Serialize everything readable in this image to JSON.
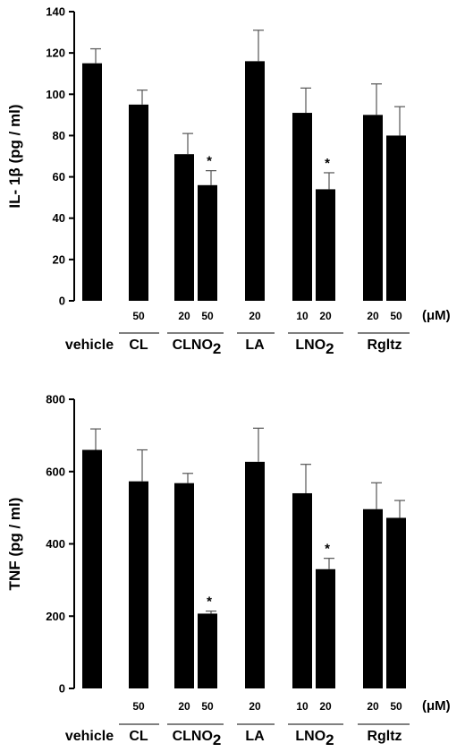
{
  "chart_data": [
    {
      "type": "bar",
      "ylabel": "IL- 1β (pg / ml)",
      "ylim": [
        0,
        140
      ],
      "yticks": [
        0,
        20,
        40,
        60,
        80,
        100,
        120,
        140
      ],
      "unit_label": "(μM)",
      "groups": [
        {
          "label": "vehicle",
          "sub": ""
        },
        {
          "label": "CL",
          "sub": ""
        },
        {
          "label": "CLNO",
          "sub": "2"
        },
        {
          "label": "LA",
          "sub": ""
        },
        {
          "label": "LNO",
          "sub": "2"
        },
        {
          "label": "Rgltz",
          "sub": ""
        }
      ],
      "bars": [
        {
          "group": 0,
          "conc": "",
          "value": 115,
          "error": 7,
          "star": ""
        },
        {
          "group": 1,
          "conc": "50",
          "value": 95,
          "error": 7,
          "star": ""
        },
        {
          "group": 2,
          "conc": "20",
          "value": 71,
          "error": 10,
          "star": ""
        },
        {
          "group": 2,
          "conc": "50",
          "value": 56,
          "error": 7,
          "star": "*"
        },
        {
          "group": 3,
          "conc": "20",
          "value": 116,
          "error": 15,
          "star": ""
        },
        {
          "group": 4,
          "conc": "10",
          "value": 91,
          "error": 12,
          "star": ""
        },
        {
          "group": 4,
          "conc": "20",
          "value": 54,
          "error": 8,
          "star": "*"
        },
        {
          "group": 5,
          "conc": "20",
          "value": 90,
          "error": 15,
          "star": ""
        },
        {
          "group": 5,
          "conc": "50",
          "value": 80,
          "error": 14,
          "star": ""
        }
      ]
    },
    {
      "type": "bar",
      "ylabel": "TNF (pg / ml)",
      "ylim": [
        0,
        800
      ],
      "yticks": [
        0,
        200,
        400,
        600,
        800
      ],
      "unit_label": "(μM)",
      "groups": [
        {
          "label": "vehicle",
          "sub": ""
        },
        {
          "label": "CL",
          "sub": ""
        },
        {
          "label": "CLNO",
          "sub": "2"
        },
        {
          "label": "LA",
          "sub": ""
        },
        {
          "label": "LNO",
          "sub": "2"
        },
        {
          "label": "Rgltz",
          "sub": ""
        }
      ],
      "bars": [
        {
          "group": 0,
          "conc": "",
          "value": 660,
          "error": 58,
          "star": ""
        },
        {
          "group": 1,
          "conc": "50",
          "value": 573,
          "error": 87,
          "star": ""
        },
        {
          "group": 2,
          "conc": "20",
          "value": 568,
          "error": 27,
          "star": ""
        },
        {
          "group": 2,
          "conc": "50",
          "value": 207,
          "error": 7,
          "star": "*"
        },
        {
          "group": 3,
          "conc": "20",
          "value": 627,
          "error": 93,
          "star": ""
        },
        {
          "group": 4,
          "conc": "10",
          "value": 540,
          "error": 80,
          "star": ""
        },
        {
          "group": 4,
          "conc": "20",
          "value": 330,
          "error": 30,
          "star": "*"
        },
        {
          "group": 5,
          "conc": "20",
          "value": 496,
          "error": 73,
          "star": ""
        },
        {
          "group": 5,
          "conc": "50",
          "value": 472,
          "error": 48,
          "star": ""
        }
      ]
    }
  ]
}
